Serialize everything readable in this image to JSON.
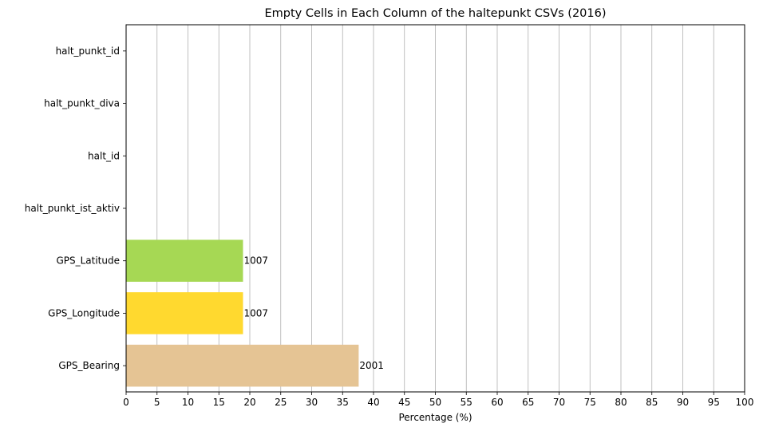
{
  "chart_data": {
    "type": "bar",
    "orientation": "horizontal",
    "title": "Empty Cells in Each Column of the haltepunkt CSVs (2016)",
    "xlabel": "Percentage (%)",
    "ylabel": "",
    "xlim": [
      0,
      100
    ],
    "xticks": [
      0,
      5,
      10,
      15,
      20,
      25,
      30,
      35,
      40,
      45,
      50,
      55,
      60,
      65,
      70,
      75,
      80,
      85,
      90,
      95,
      100
    ],
    "grid": "vertical",
    "categories": [
      "halt_punkt_id",
      "halt_punkt_diva",
      "halt_id",
      "halt_punkt_ist_aktiv",
      "GPS_Latitude",
      "GPS_Longitude",
      "GPS_Bearing"
    ],
    "values": [
      0,
      0,
      0,
      0,
      18.9,
      18.9,
      37.6
    ],
    "bar_labels": [
      "",
      "",
      "",
      "",
      "1007",
      "1007",
      "2001"
    ],
    "colors": [
      "#66c2a5",
      "#fc8d62",
      "#8da0cb",
      "#e78ac3",
      "#a6d854",
      "#ffd92f",
      "#e5c494"
    ]
  }
}
